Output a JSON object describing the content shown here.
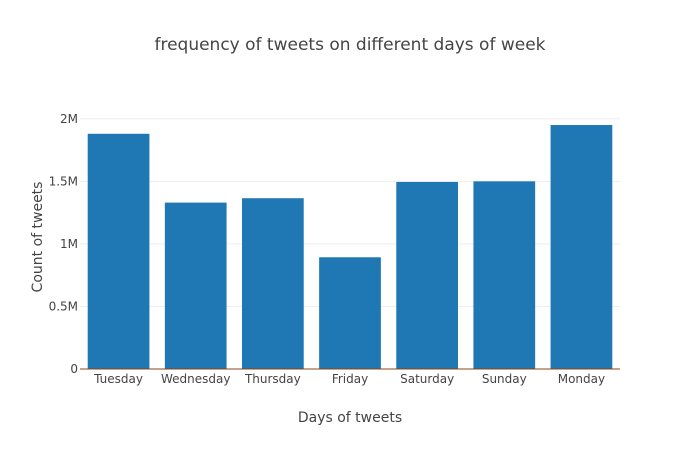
{
  "chart_data": {
    "type": "bar",
    "title": "frequency of tweets on different days of week",
    "xlabel": "Days of tweets",
    "ylabel": "Count of tweets",
    "categories": [
      "Tuesday",
      "Wednesday",
      "Thursday",
      "Friday",
      "Saturday",
      "Sunday",
      "Monday"
    ],
    "values": [
      1880000,
      1330000,
      1365000,
      893000,
      1495000,
      1500000,
      1950000
    ],
    "ylim": [
      0,
      2150000
    ],
    "yticks": [
      0,
      500000,
      1000000,
      1500000,
      2000000
    ],
    "ytick_labels": [
      "0",
      "0.5M",
      "1M",
      "1.5M",
      "2M"
    ],
    "bar_color": "#1f77b4",
    "grid": true,
    "legend": "none"
  }
}
